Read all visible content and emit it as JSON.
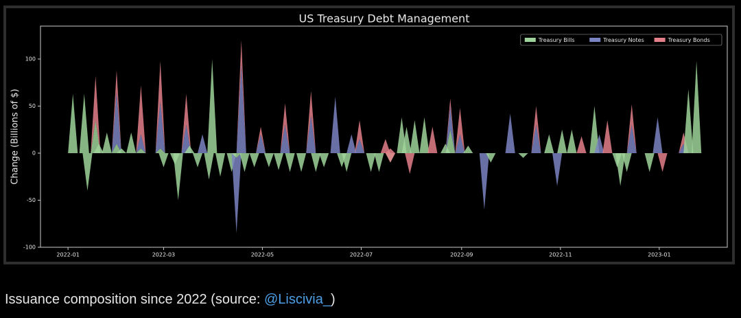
{
  "chart_data": {
    "type": "stacked-spike",
    "title": "US Treasury Debt Management",
    "y_label": "Change (Billions of $)",
    "x": [
      "2022-01-04",
      "2022-01-11",
      "2022-01-13",
      "2022-01-18",
      "2022-01-20",
      "2022-01-25",
      "2022-01-31",
      "2022-02-03",
      "2022-02-09",
      "2022-02-15",
      "2022-02-27",
      "2022-03-01",
      "2022-03-08",
      "2022-03-10",
      "2022-03-15",
      "2022-03-17",
      "2022-03-22",
      "2022-03-25",
      "2022-03-29",
      "2022-03-31",
      "2022-04-05",
      "2022-04-12",
      "2022-04-15",
      "2022-04-18",
      "2022-04-20",
      "2022-04-26",
      "2022-04-30",
      "2022-05-05",
      "2022-05-11",
      "2022-05-15",
      "2022-05-18",
      "2022-05-25",
      "2022-05-31",
      "2022-06-03",
      "2022-06-08",
      "2022-06-15",
      "2022-06-19",
      "2022-06-22",
      "2022-06-25",
      "2022-06-30",
      "2022-07-07",
      "2022-07-12",
      "2022-07-16",
      "2022-07-19",
      "2022-07-26",
      "2022-07-29",
      "2022-07-31",
      "2022-08-03",
      "2022-08-09",
      "2022-08-14",
      "2022-08-22",
      "2022-08-25",
      "2022-08-31",
      "2022-09-05",
      "2022-09-15",
      "2022-09-19",
      "2022-10-01",
      "2022-10-09",
      "2022-10-17",
      "2022-10-25",
      "2022-10-30",
      "2022-11-02",
      "2022-11-08",
      "2022-11-14",
      "2022-11-22",
      "2022-11-25",
      "2022-11-30",
      "2022-12-06",
      "2022-12-08",
      "2022-12-12",
      "2022-12-15",
      "2022-12-26",
      "2022-12-31",
      "2023-01-03",
      "2023-01-16",
      "2023-01-19",
      "2023-01-24"
    ],
    "series": [
      {
        "name": "Treasury Bills",
        "color": "#9fd49a",
        "values": [
          63,
          63,
          -40,
          35,
          10,
          22,
          10,
          5,
          22,
          5,
          5,
          -15,
          -12,
          -50,
          0,
          8,
          -15,
          0,
          -28,
          100,
          -25,
          -20,
          -5,
          0,
          -20,
          -15,
          0,
          -15,
          -18,
          0,
          -20,
          -20,
          0,
          -20,
          -15,
          0,
          -15,
          -20,
          0,
          0,
          -20,
          -20,
          0,
          -10,
          38,
          28,
          0,
          35,
          38,
          0,
          10,
          25,
          0,
          8,
          0,
          -10,
          0,
          -5,
          0,
          20,
          0,
          25,
          25,
          0,
          50,
          0,
          0,
          -15,
          -35,
          -20,
          0,
          -20,
          0,
          0,
          0,
          68,
          98
        ]
      },
      {
        "name": "Treasury Notes",
        "color": "#7a84c2",
        "values": [
          0,
          0,
          0,
          0,
          0,
          0,
          55,
          0,
          0,
          15,
          50,
          0,
          0,
          0,
          30,
          0,
          0,
          20,
          0,
          0,
          0,
          0,
          -80,
          95,
          0,
          0,
          20,
          0,
          0,
          30,
          0,
          0,
          40,
          0,
          0,
          60,
          0,
          0,
          20,
          15,
          0,
          0,
          0,
          0,
          0,
          0,
          0,
          0,
          0,
          0,
          0,
          25,
          20,
          0,
          -60,
          0,
          42,
          0,
          30,
          0,
          -35,
          0,
          0,
          0,
          0,
          20,
          0,
          0,
          0,
          0,
          30,
          0,
          38,
          0,
          10,
          0,
          0
        ]
      },
      {
        "name": "Treasury Bonds",
        "color": "#e4808a",
        "values": [
          0,
          0,
          0,
          47,
          0,
          0,
          23,
          0,
          0,
          52,
          43,
          0,
          0,
          0,
          33,
          0,
          0,
          0,
          0,
          0,
          0,
          0,
          0,
          25,
          0,
          0,
          8,
          0,
          0,
          23,
          0,
          0,
          26,
          0,
          0,
          0,
          0,
          0,
          0,
          20,
          0,
          0,
          15,
          15,
          0,
          0,
          -22,
          0,
          0,
          28,
          0,
          8,
          28,
          0,
          0,
          0,
          0,
          0,
          20,
          0,
          0,
          0,
          0,
          18,
          0,
          0,
          35,
          0,
          0,
          0,
          22,
          0,
          0,
          -20,
          12,
          0,
          0
        ]
      }
    ],
    "xlim": [
      "2021-12-15",
      "2023-02-12"
    ],
    "xticks": [
      {
        "value": "2022-01-01",
        "label": "2022-01"
      },
      {
        "value": "2022-03-01",
        "label": "2022-03"
      },
      {
        "value": "2022-05-01",
        "label": "2022-05"
      },
      {
        "value": "2022-07-01",
        "label": "2022-07"
      },
      {
        "value": "2022-09-01",
        "label": "2022-09"
      },
      {
        "value": "2022-11-01",
        "label": "2022-11"
      },
      {
        "value": "2023-01-01",
        "label": "2023-01"
      }
    ],
    "ylim": [
      -100,
      135
    ],
    "yticks": [
      -100,
      -50,
      0,
      50,
      100
    ],
    "legend": "upper right"
  },
  "caption": {
    "text": "Issuance composition since 2022 (source: ",
    "link": "@Liscivia_",
    "suffix": ")"
  }
}
